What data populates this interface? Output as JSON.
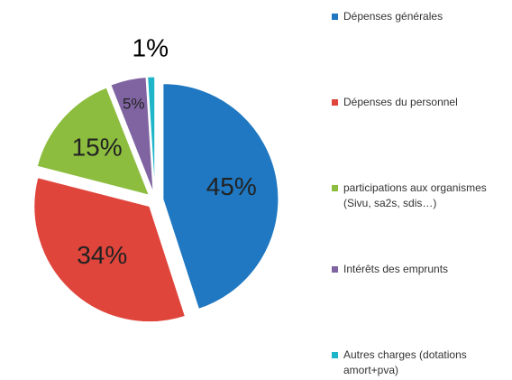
{
  "chart_data": {
    "type": "pie",
    "categories": [
      "Dépenses générales",
      "Dépenses du personnel",
      "participations aux organismes (Sivu, sa2s, sdis…)",
      "Intérêts des emprunts",
      "Autres charges (dotations amort+pva)"
    ],
    "values": [
      45,
      34,
      15,
      5,
      1
    ],
    "value_labels": [
      "45%",
      "34%",
      "15%",
      "5%",
      "1%"
    ],
    "colors": [
      "#1f78c1",
      "#e0453c",
      "#8cbd3f",
      "#8064a2",
      "#1fb5c9"
    ],
    "legend": "right"
  }
}
